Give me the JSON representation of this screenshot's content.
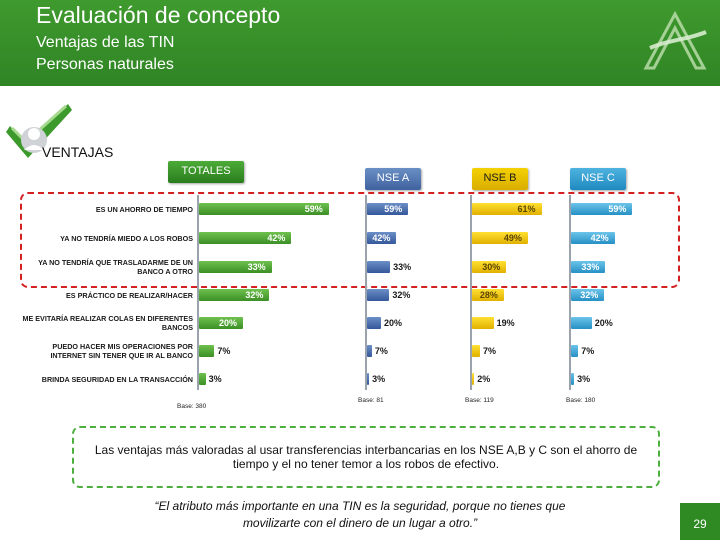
{
  "header": {
    "title": "Evaluación de concepto",
    "subtitle1": "Ventajas de las TIN",
    "subtitle2": "Personas naturales"
  },
  "section_label": "VENTAJAS",
  "colors": {
    "header_green": "#2f8424",
    "totales": "#3b8f25",
    "nse_a": "#34589a",
    "nse_b": "#e0b000",
    "nse_c": "#2690c4",
    "highlight_box": "#d32020",
    "conclusion_box": "#4caf3e"
  },
  "icons": [
    "logo-a-icon",
    "checkmark-icon"
  ],
  "chart_data": {
    "type": "bar",
    "orientation": "horizontal",
    "categories": [
      "ES UN AHORRO DE TIEMPO",
      "YA NO TENDRÍA MIEDO A LOS ROBOS",
      "YA NO TENDRÍA QUE TRASLADARME DE UN BANCO A OTRO",
      "ES PRÁCTICO DE REALIZAR/HACER",
      "ME EVITARÍA REALIZAR COLAS EN DIFERENTES BANCOS",
      "PUEDO HACER MIS OPERACIONES POR INTERNET SIN TENER QUE IR AL BANCO",
      "BRINDA SEGURIDAD EN LA TRANSACCIÓN"
    ],
    "series": [
      {
        "name": "TOTALES",
        "key": "tot",
        "base": "Base: 380",
        "values": [
          59,
          42,
          33,
          32,
          20,
          7,
          3
        ]
      },
      {
        "name": "NSE A",
        "key": "a",
        "base": "Base: 81",
        "values": [
          59,
          42,
          33,
          32,
          20,
          7,
          3
        ]
      },
      {
        "name": "NSE  B",
        "key": "b",
        "base": "Base: 119",
        "values": [
          61,
          49,
          30,
          28,
          19,
          7,
          2
        ]
      },
      {
        "name": "NSE C",
        "key": "c",
        "base": "Base: 180",
        "values": [
          59,
          42,
          33,
          32,
          20,
          7,
          3
        ]
      }
    ],
    "value_suffix": "%",
    "highlighted_categories": 3,
    "grid": false,
    "legend": "none"
  },
  "conclusion": "Las ventajas más valoradas al usar transferencias interbancarias en los NSE A,B y C son el ahorro de tiempo y  el no tener temor a los robos de efectivo.",
  "quote_line1": "“El atributo más importante en una TIN es la seguridad, porque no tienes que",
  "quote_line2": "movilizarte con el dinero de un lugar a otro.”",
  "page_number": "29"
}
